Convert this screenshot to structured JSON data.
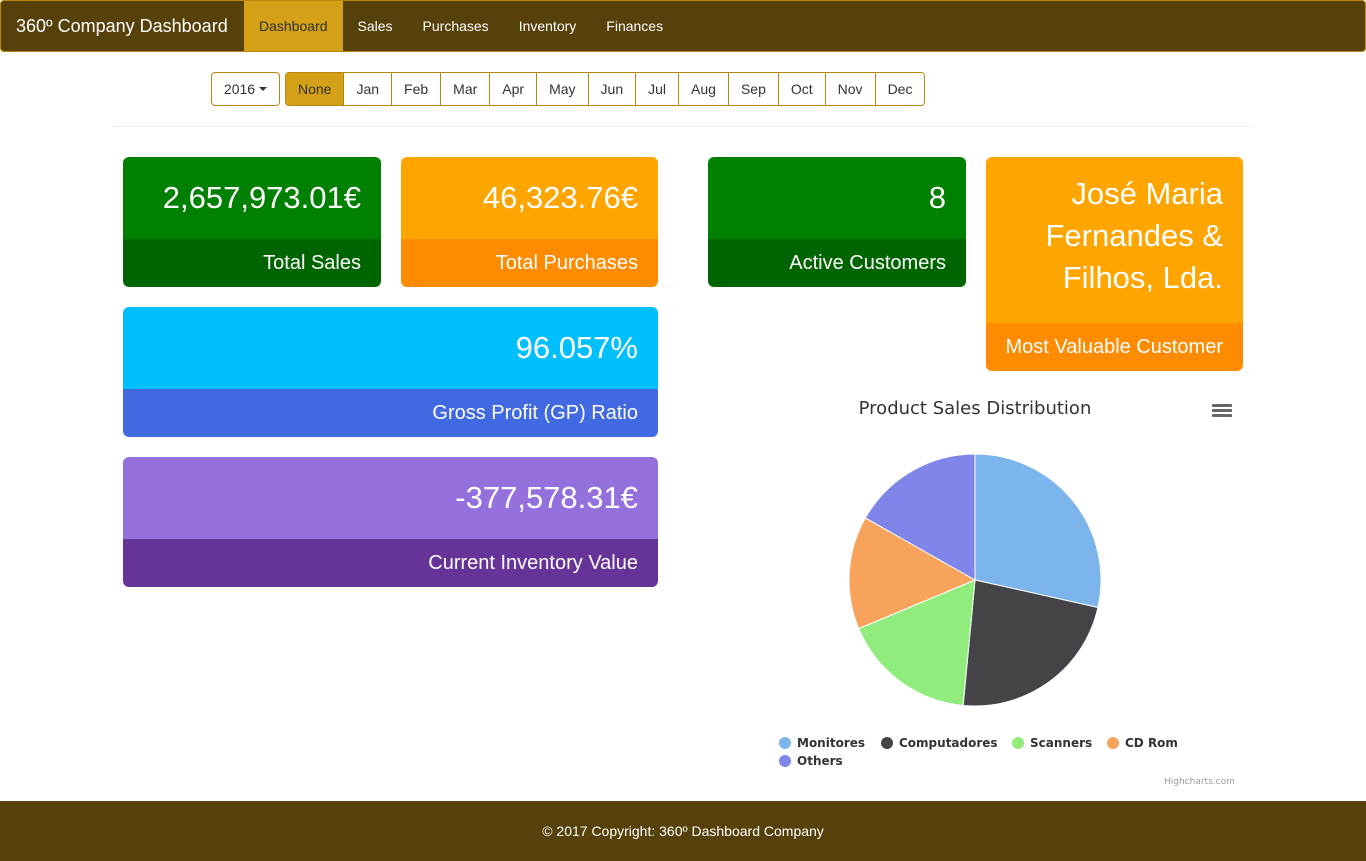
{
  "navbar": {
    "brand": "360º Company Dashboard",
    "items": [
      {
        "label": "Dashboard",
        "active": true
      },
      {
        "label": "Sales"
      },
      {
        "label": "Purchases"
      },
      {
        "label": "Inventory"
      },
      {
        "label": "Finances"
      }
    ]
  },
  "filters": {
    "year": "2016",
    "months": [
      "None",
      "Jan",
      "Feb",
      "Mar",
      "Apr",
      "May",
      "Jun",
      "Jul",
      "Aug",
      "Sep",
      "Oct",
      "Nov",
      "Dec"
    ],
    "selected_month": "None"
  },
  "cards": {
    "total_sales": {
      "value": "2,657,973.01€",
      "label": "Total Sales"
    },
    "total_purchases": {
      "value": "46,323.76€",
      "label": "Total Purchases"
    },
    "active_customers": {
      "value": "8",
      "label": "Active Customers"
    },
    "most_valuable_customer": {
      "value": "José Maria Fernandes & Filhos, Lda.",
      "label": "Most Valuable Customer"
    },
    "gp_ratio": {
      "value": "96.057%",
      "label": "Gross Profit (GP) Ratio"
    },
    "inventory_value": {
      "value": "-377,578.31€",
      "label": "Current Inventory Value"
    }
  },
  "colors": {
    "navbar": "#56410b",
    "accent": "#d4a017",
    "green": "#008000",
    "green_dark": "#006400",
    "orange": "#ffa500",
    "orange_dark": "#ff8c00",
    "sky": "#00bfff",
    "royal": "#4169e1",
    "purple": "#9370db",
    "purple_dark": "#663399"
  },
  "chart": {
    "title": "Product Sales Distribution",
    "credits": "Highcharts.com"
  },
  "chart_data": {
    "type": "pie",
    "title": "Product Sales Distribution",
    "legend_position": "bottom",
    "series": [
      {
        "name": "Monitores",
        "value": 28.5,
        "color": "#7cb5ec"
      },
      {
        "name": "Computadores",
        "value": 23.0,
        "color": "#434348"
      },
      {
        "name": "Scanners",
        "value": 17.2,
        "color": "#90ed7d"
      },
      {
        "name": "CD Rom",
        "value": 14.5,
        "color": "#f7a35c"
      },
      {
        "name": "Others",
        "value": 16.8,
        "color": "#8085e9"
      }
    ]
  },
  "footer": {
    "text": "© 2017 Copyright: 360º Dashboard Company"
  }
}
